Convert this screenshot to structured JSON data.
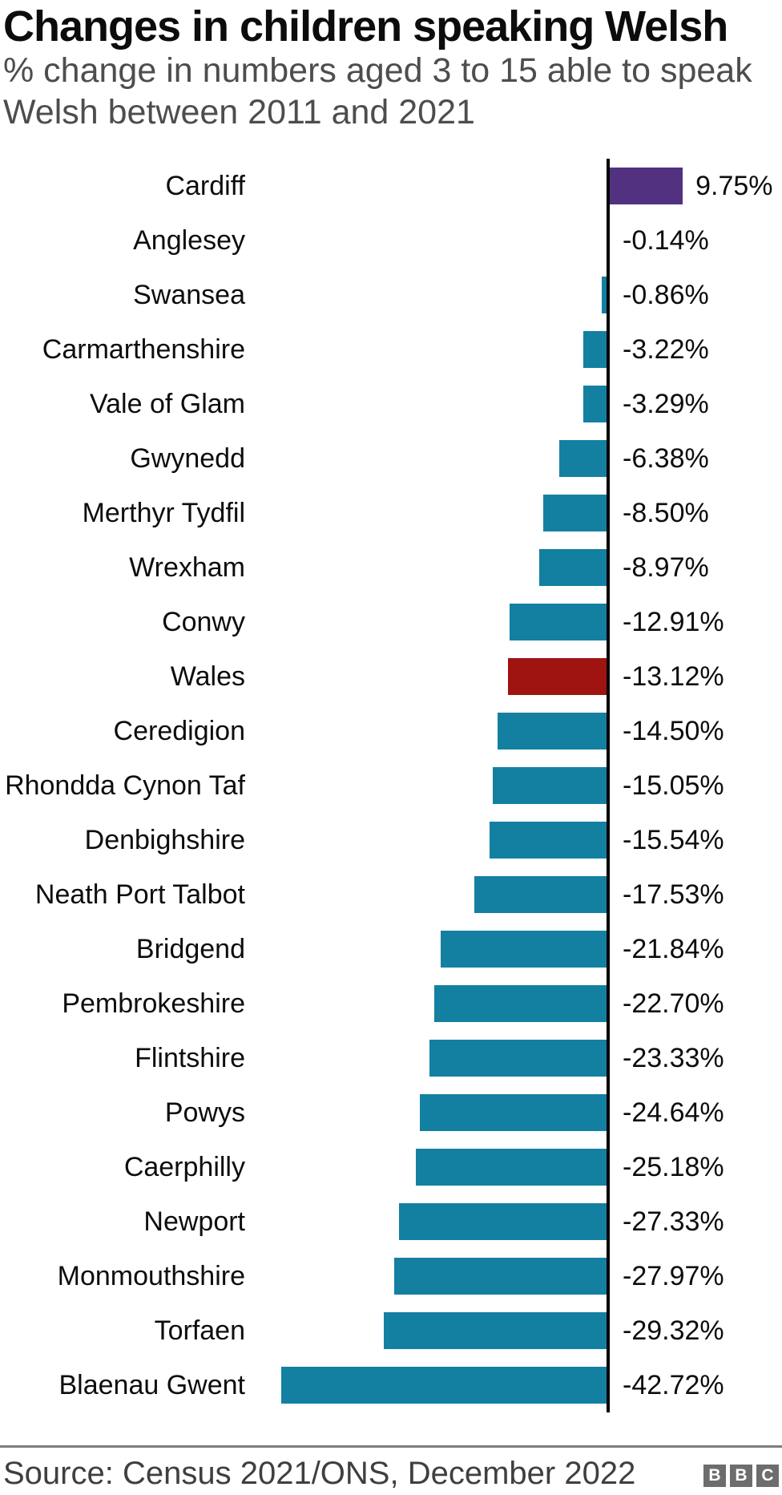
{
  "header": {
    "title": "Changes in children speaking Welsh",
    "subtitle": "% change in numbers aged 3 to 15 able to speak\nWelsh between 2011 and 2021"
  },
  "chart_data": {
    "type": "bar",
    "orientation": "horizontal",
    "title": "Changes in children speaking Welsh",
    "subtitle": "% change in numbers aged 3 to 15 able to speak Welsh between 2011 and 2021",
    "xlabel": "",
    "ylabel": "",
    "xlim": [
      -45,
      12
    ],
    "grid": false,
    "zero_baseline": true,
    "value_labels_shown": true,
    "categories": [
      "Cardiff",
      "Anglesey",
      "Swansea",
      "Carmarthenshire",
      "Vale of Glam",
      "Gwynedd",
      "Merthyr Tydfil",
      "Wrexham",
      "Conwy",
      "Wales",
      "Ceredigion",
      "Rhondda Cynon Taf",
      "Denbighshire",
      "Neath Port Talbot",
      "Bridgend",
      "Pembrokeshire",
      "Flintshire",
      "Powys",
      "Caerphilly",
      "Newport",
      "Monmouthshire",
      "Torfaen",
      "Blaenau Gwent"
    ],
    "values": [
      9.75,
      -0.14,
      -0.86,
      -3.22,
      -3.29,
      -6.38,
      -8.5,
      -8.97,
      -12.91,
      -13.12,
      -14.5,
      -15.05,
      -15.54,
      -17.53,
      -21.84,
      -22.7,
      -23.33,
      -24.64,
      -25.18,
      -27.33,
      -27.97,
      -29.32,
      -42.72
    ],
    "value_labels": [
      "9.75%",
      "-0.14%",
      "-0.86%",
      "-3.22%",
      "-3.29%",
      "-6.38%",
      "-8.50%",
      "-8.97%",
      "-12.91%",
      "-13.12%",
      "-14.50%",
      "-15.05%",
      "-15.54%",
      "-17.53%",
      "-21.84%",
      "-22.70%",
      "-23.33%",
      "-24.64%",
      "-25.18%",
      "-27.33%",
      "-27.97%",
      "-29.32%",
      "-42.72%"
    ],
    "highlight_category": "Wales",
    "colors": {
      "positive": "#513180",
      "negative": "#1380a1",
      "highlight": "#9f1310",
      "axis_line": "#000000"
    }
  },
  "footer": {
    "source": "Source: Census 2021/ONS, December 2022",
    "logo_letters": [
      "B",
      "B",
      "C"
    ]
  }
}
